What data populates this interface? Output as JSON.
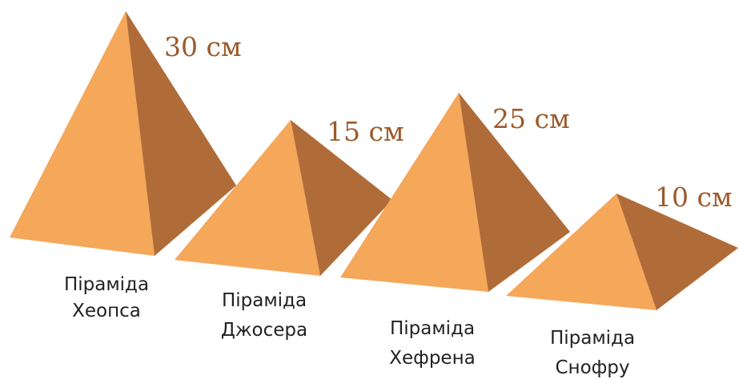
{
  "pyramids": [
    {
      "height": "30 см",
      "name": [
        "Піраміда",
        "Хеопса"
      ]
    },
    {
      "height": "15 см",
      "name": [
        "Піраміда",
        "Джосера"
      ]
    },
    {
      "height": "25 см",
      "name": [
        "Піраміда",
        "Хефрена"
      ]
    },
    {
      "height": "10 см",
      "name": [
        "Піраміда",
        "Снофру"
      ]
    }
  ]
}
